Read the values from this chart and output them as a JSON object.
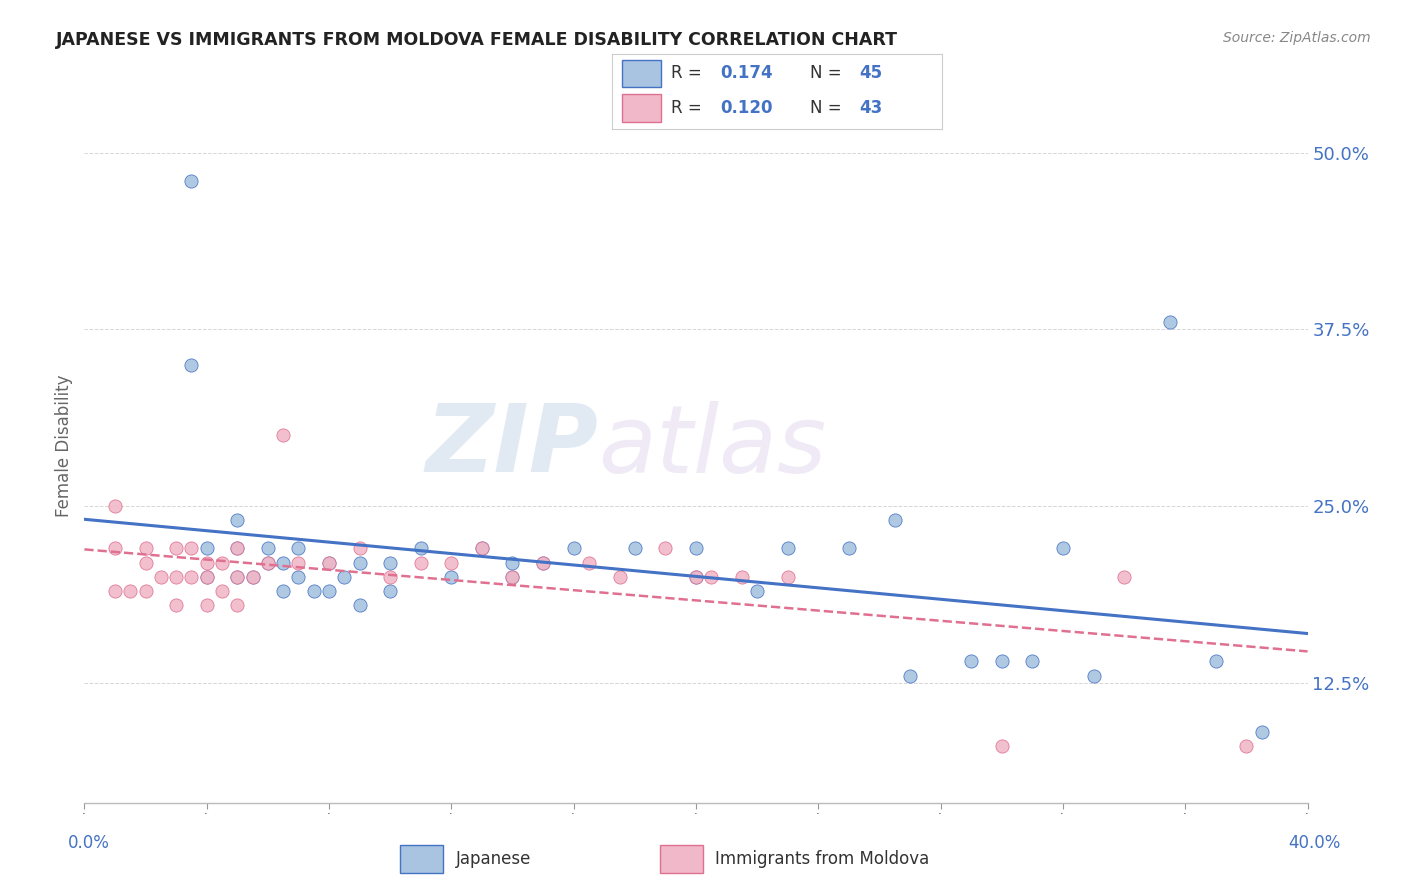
{
  "title": "JAPANESE VS IMMIGRANTS FROM MOLDOVA FEMALE DISABILITY CORRELATION CHART",
  "source": "Source: ZipAtlas.com",
  "ylabel": "Female Disability",
  "xlim": [
    0.0,
    0.4
  ],
  "ylim": [
    0.04,
    0.545
  ],
  "ytick_vals": [
    0.125,
    0.25,
    0.375,
    0.5
  ],
  "ytick_labels": [
    "12.5%",
    "25.0%",
    "37.5%",
    "50.0%"
  ],
  "color_japanese": "#a8c4e0",
  "color_moldova": "#f0b8c8",
  "line_color_japanese": "#4472c4",
  "line_color_moldova": "#e07090",
  "watermark_zip": "ZIP",
  "watermark_atlas": "atlas",
  "japanese_x": [
    0.035,
    0.035,
    0.04,
    0.04,
    0.05,
    0.05,
    0.05,
    0.055,
    0.06,
    0.06,
    0.065,
    0.065,
    0.07,
    0.07,
    0.075,
    0.08,
    0.08,
    0.085,
    0.09,
    0.09,
    0.1,
    0.1,
    0.11,
    0.12,
    0.13,
    0.14,
    0.14,
    0.15,
    0.16,
    0.18,
    0.2,
    0.2,
    0.22,
    0.23,
    0.25,
    0.265,
    0.27,
    0.29,
    0.3,
    0.31,
    0.32,
    0.33,
    0.355,
    0.37,
    0.385
  ],
  "japanese_y": [
    0.48,
    0.35,
    0.22,
    0.2,
    0.24,
    0.22,
    0.2,
    0.2,
    0.22,
    0.21,
    0.21,
    0.19,
    0.22,
    0.2,
    0.19,
    0.21,
    0.19,
    0.2,
    0.21,
    0.18,
    0.21,
    0.19,
    0.22,
    0.2,
    0.22,
    0.2,
    0.21,
    0.21,
    0.22,
    0.22,
    0.22,
    0.2,
    0.19,
    0.22,
    0.22,
    0.24,
    0.13,
    0.14,
    0.14,
    0.14,
    0.22,
    0.13,
    0.38,
    0.14,
    0.09
  ],
  "moldova_x": [
    0.01,
    0.01,
    0.01,
    0.015,
    0.02,
    0.02,
    0.02,
    0.025,
    0.03,
    0.03,
    0.03,
    0.035,
    0.035,
    0.04,
    0.04,
    0.04,
    0.045,
    0.045,
    0.05,
    0.05,
    0.05,
    0.055,
    0.06,
    0.065,
    0.07,
    0.08,
    0.09,
    0.1,
    0.11,
    0.12,
    0.13,
    0.14,
    0.15,
    0.165,
    0.175,
    0.19,
    0.2,
    0.205,
    0.215,
    0.23,
    0.3,
    0.34,
    0.38
  ],
  "moldova_y": [
    0.25,
    0.22,
    0.19,
    0.19,
    0.22,
    0.21,
    0.19,
    0.2,
    0.22,
    0.2,
    0.18,
    0.22,
    0.2,
    0.21,
    0.2,
    0.18,
    0.21,
    0.19,
    0.22,
    0.2,
    0.18,
    0.2,
    0.21,
    0.3,
    0.21,
    0.21,
    0.22,
    0.2,
    0.21,
    0.21,
    0.22,
    0.2,
    0.21,
    0.21,
    0.2,
    0.22,
    0.2,
    0.2,
    0.2,
    0.2,
    0.08,
    0.2,
    0.08
  ]
}
